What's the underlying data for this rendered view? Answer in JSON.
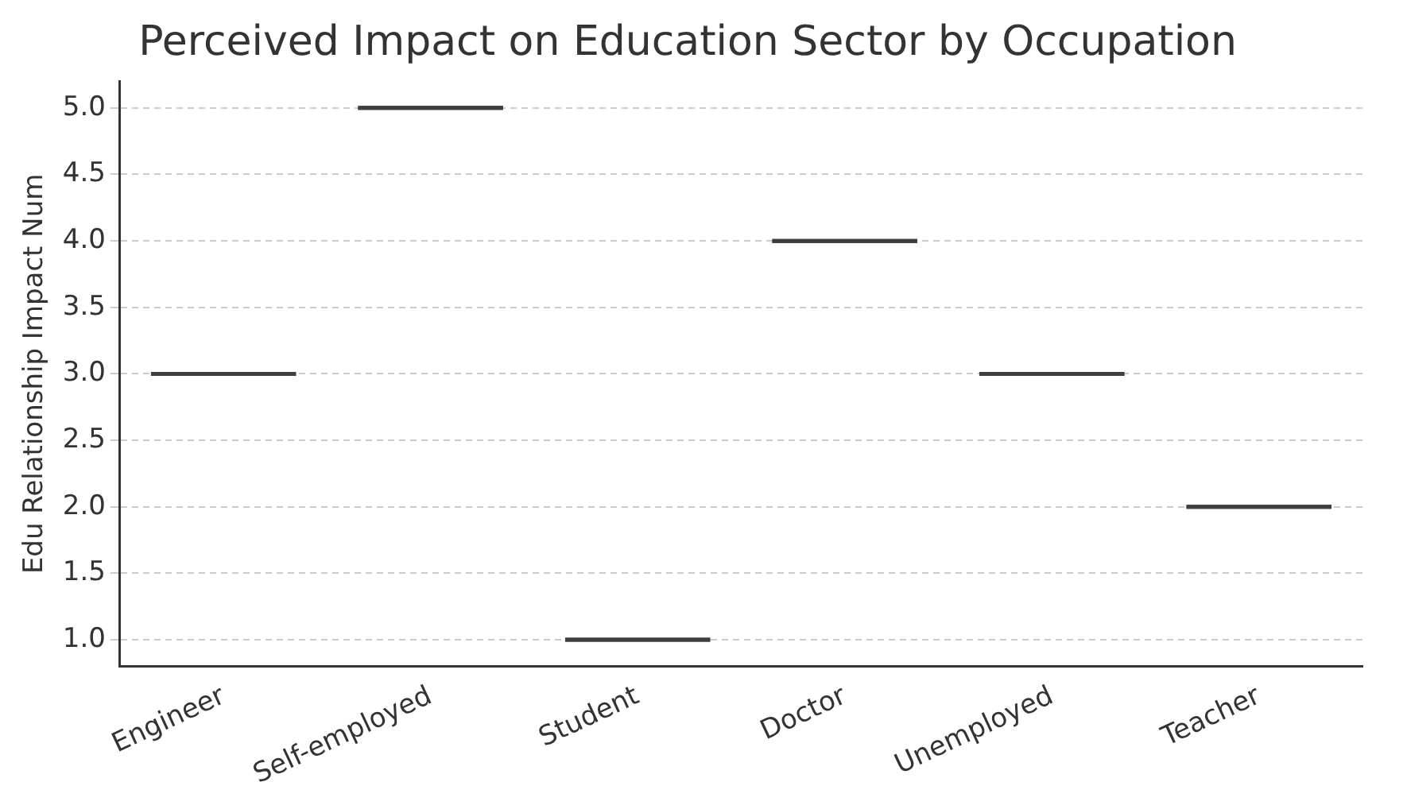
{
  "chart_data": {
    "type": "box",
    "title": "Perceived Impact on Education Sector by Occupation",
    "ylabel": "Edu Relationship Impact Num",
    "categories": [
      "Engineer",
      "Self-employed",
      "Student",
      "Doctor",
      "Unemployed",
      "Teacher"
    ],
    "boxes": [
      {
        "low": 3,
        "q1": 3,
        "median": 3,
        "q3": 3,
        "high": 3
      },
      {
        "low": 5,
        "q1": 5,
        "median": 5,
        "q3": 5,
        "high": 5
      },
      {
        "low": 1,
        "q1": 1,
        "median": 1,
        "q3": 1,
        "high": 1
      },
      {
        "low": 4,
        "q1": 4,
        "median": 4,
        "q3": 4,
        "high": 4
      },
      {
        "low": 3,
        "q1": 3,
        "median": 3,
        "q3": 3,
        "high": 3
      },
      {
        "low": 2,
        "q1": 2,
        "median": 2,
        "q3": 2,
        "high": 2
      }
    ],
    "color": "#3f3f3f",
    "ylim": [
      0.8,
      5.2
    ],
    "yticks": [
      {
        "value": 1,
        "label": "1.0"
      },
      1.5,
      {
        "value": 2,
        "label": "2.0"
      },
      2.5,
      {
        "value": 3,
        "label": "3.0"
      },
      3.5,
      {
        "value": 4,
        "label": "4.0"
      },
      4.5,
      {
        "value": 5,
        "label": "5.0"
      }
    ],
    "grid": "y"
  }
}
